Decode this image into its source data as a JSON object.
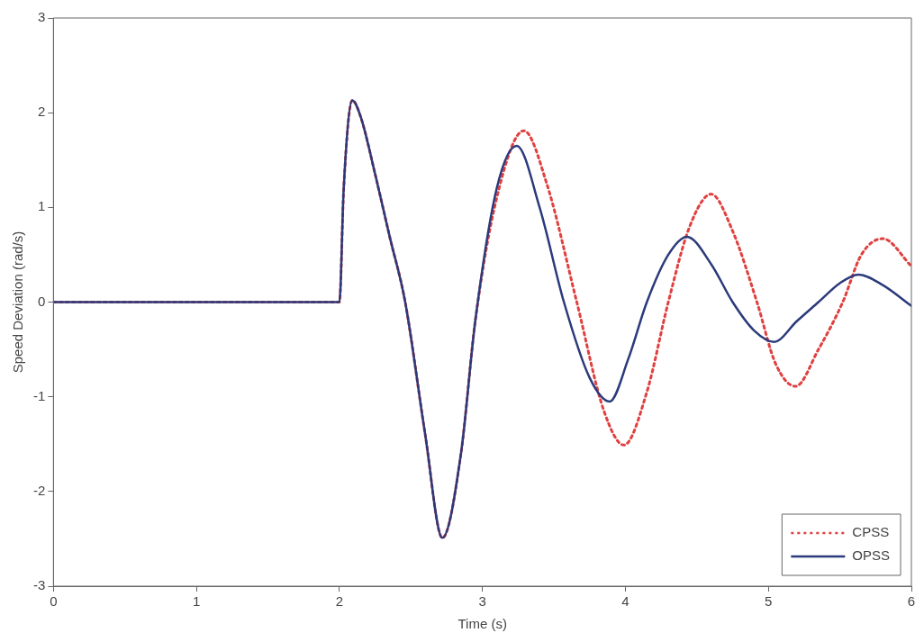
{
  "chart_data": {
    "type": "line",
    "xlabel": "Time (s)",
    "ylabel": "Speed Deviation (rad/s)",
    "xlim": [
      0,
      6
    ],
    "xticks": [
      0,
      1,
      2,
      3,
      4,
      5,
      6
    ],
    "ylim": [
      -3,
      3
    ],
    "yticks": [
      -3,
      -2,
      -1,
      0,
      1,
      2,
      3
    ],
    "grid": false,
    "legend": "bottom right",
    "marker": "none",
    "series": [
      {
        "name": "CPSS",
        "color": "#e04040",
        "line_style": "dotted",
        "x": [
          0,
          1,
          2,
          2.03,
          2.09,
          2.15,
          2.25,
          2.35,
          2.46,
          2.6,
          2.72,
          2.85,
          2.95,
          3.1,
          3.29,
          3.45,
          3.66,
          3.85,
          3.99,
          4.15,
          4.3,
          4.45,
          4.6,
          4.75,
          4.92,
          5.05,
          5.19,
          5.35,
          5.52,
          5.65,
          5.8,
          6
        ],
        "values": [
          0,
          0,
          0,
          1.2,
          2.13,
          1.95,
          1.35,
          0.7,
          0,
          -1.4,
          -2.49,
          -1.6,
          -0.2,
          1.1,
          1.81,
          1.25,
          0,
          -1.15,
          -1.51,
          -0.95,
          0,
          0.8,
          1.14,
          0.75,
          0,
          -0.65,
          -0.89,
          -0.5,
          0,
          0.5,
          0.67,
          0.38
        ]
      },
      {
        "name": "OPSS",
        "color": "#2b3a7a",
        "line_style": "solid",
        "x": [
          0,
          1,
          2,
          2.03,
          2.09,
          2.15,
          2.25,
          2.35,
          2.46,
          2.6,
          2.72,
          2.85,
          2.95,
          3.1,
          3.24,
          3.4,
          3.57,
          3.75,
          3.89,
          4.02,
          4.15,
          4.3,
          4.43,
          4.6,
          4.75,
          4.9,
          5.04,
          5.2,
          5.35,
          5.5,
          5.63,
          5.8,
          6
        ],
        "values": [
          0,
          0,
          0,
          1.2,
          2.13,
          1.95,
          1.35,
          0.7,
          0,
          -1.4,
          -2.49,
          -1.6,
          -0.2,
          1.2,
          1.65,
          1.0,
          0,
          -0.8,
          -1.05,
          -0.6,
          0,
          0.5,
          0.69,
          0.4,
          0,
          -0.3,
          -0.42,
          -0.2,
          0,
          0.2,
          0.29,
          0.18,
          -0.04
        ]
      }
    ]
  }
}
